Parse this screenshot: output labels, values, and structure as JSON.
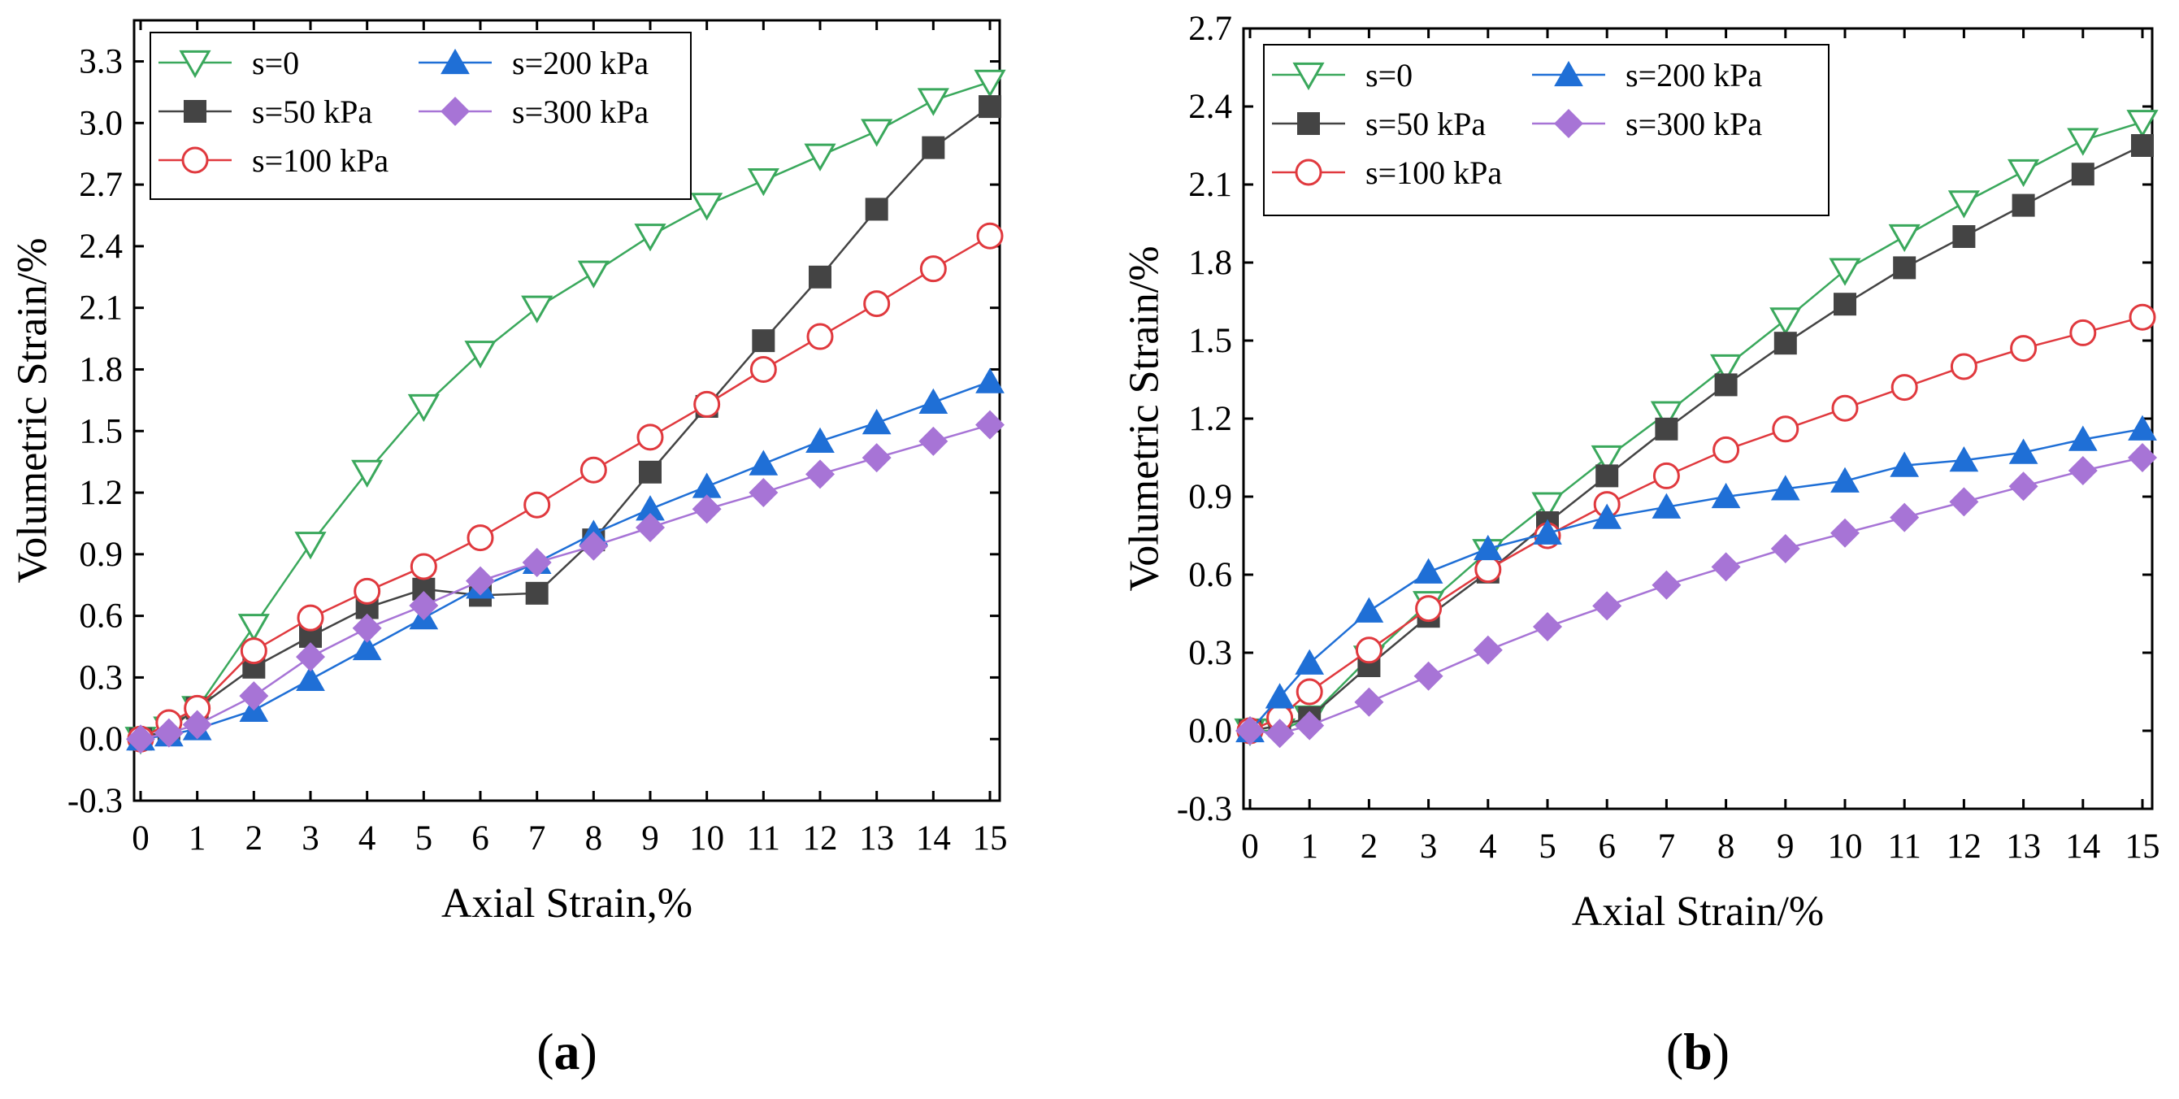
{
  "chart_data": [
    {
      "type": "line",
      "panel_label": "a",
      "xlabel": "Axial Strain,%",
      "ylabel": "Volumetric Strain/%",
      "xlim": [
        0,
        15
      ],
      "ylim": [
        -0.3,
        3.5
      ],
      "x_ticks": [
        "0",
        "1",
        "2",
        "3",
        "4",
        "5",
        "6",
        "7",
        "8",
        "9",
        "10",
        "11",
        "12",
        "13",
        "14",
        "15"
      ],
      "y_ticks": [
        "-0.3",
        "0.0",
        "0.3",
        "0.6",
        "0.9",
        "1.2",
        "1.5",
        "1.8",
        "2.1",
        "2.4",
        "2.7",
        "3.0",
        "3.3"
      ],
      "legend_position": "top-left",
      "series": [
        {
          "name": "s=0",
          "color": "#3aa85c",
          "marker": "triangle-down-open",
          "x": [
            0,
            0.5,
            1,
            2,
            3,
            4,
            5,
            6,
            7,
            8,
            9,
            10,
            11,
            12,
            13,
            14,
            15
          ],
          "y": [
            0,
            0.05,
            0.15,
            0.55,
            0.95,
            1.3,
            1.62,
            1.88,
            2.1,
            2.27,
            2.45,
            2.6,
            2.72,
            2.84,
            2.96,
            3.11,
            3.2
          ]
        },
        {
          "name": "s=50 kPa",
          "color": "#444444",
          "marker": "square",
          "x": [
            0,
            0.5,
            1,
            2,
            3,
            4,
            5,
            6,
            7,
            8,
            9,
            10,
            11,
            12,
            13,
            14,
            15
          ],
          "y": [
            0,
            0.05,
            0.15,
            0.35,
            0.5,
            0.64,
            0.73,
            0.7,
            0.71,
            0.97,
            1.3,
            1.62,
            1.94,
            2.25,
            2.58,
            2.88,
            3.08
          ]
        },
        {
          "name": "s=100 kPa",
          "color": "#e0393e",
          "marker": "circle-open",
          "x": [
            0,
            0.5,
            1,
            2,
            3,
            4,
            5,
            6,
            7,
            8,
            9,
            10,
            11,
            12,
            13,
            14,
            15
          ],
          "y": [
            0,
            0.08,
            0.15,
            0.43,
            0.59,
            0.72,
            0.84,
            0.98,
            1.14,
            1.31,
            1.47,
            1.63,
            1.8,
            1.96,
            2.12,
            2.29,
            2.45
          ]
        },
        {
          "name": "s=200 kPa",
          "color": "#1f6fd6",
          "marker": "triangle-up",
          "x": [
            0,
            0.5,
            1,
            2,
            3,
            4,
            5,
            6,
            7,
            8,
            9,
            10,
            11,
            12,
            13,
            14,
            15
          ],
          "y": [
            0,
            0.02,
            0.05,
            0.14,
            0.29,
            0.44,
            0.59,
            0.74,
            0.86,
            1.0,
            1.12,
            1.23,
            1.34,
            1.45,
            1.54,
            1.64,
            1.74
          ]
        },
        {
          "name": "s=300 kPa",
          "color": "#a774d6",
          "marker": "diamond",
          "x": [
            0,
            0.5,
            1,
            2,
            3,
            4,
            5,
            6,
            7,
            8,
            9,
            10,
            11,
            12,
            13,
            14,
            15
          ],
          "y": [
            0,
            0.03,
            0.07,
            0.21,
            0.4,
            0.54,
            0.65,
            0.77,
            0.86,
            0.94,
            1.03,
            1.12,
            1.2,
            1.29,
            1.37,
            1.45,
            1.53
          ]
        }
      ]
    },
    {
      "type": "line",
      "panel_label": "b",
      "xlabel": "Axial Strain/%",
      "ylabel": "Volumetric Strain/%",
      "xlim": [
        0,
        15
      ],
      "ylim": [
        -0.3,
        2.7
      ],
      "x_ticks": [
        "0",
        "1",
        "2",
        "3",
        "4",
        "5",
        "6",
        "7",
        "8",
        "9",
        "10",
        "11",
        "12",
        "13",
        "14",
        "15"
      ],
      "y_ticks": [
        "-0.3",
        "0.0",
        "0.3",
        "0.6",
        "0.9",
        "1.2",
        "1.5",
        "1.8",
        "2.1",
        "2.4",
        "2.7"
      ],
      "legend_position": "top-left",
      "series": [
        {
          "name": "s=0",
          "color": "#3aa85c",
          "marker": "triangle-down-open",
          "x": [
            0,
            0.5,
            1,
            2,
            3,
            4,
            5,
            6,
            7,
            8,
            9,
            10,
            11,
            12,
            13,
            14,
            15
          ],
          "y": [
            0,
            0.0,
            0.05,
            0.28,
            0.49,
            0.69,
            0.87,
            1.05,
            1.22,
            1.4,
            1.58,
            1.77,
            1.9,
            2.03,
            2.15,
            2.27,
            2.34
          ]
        },
        {
          "name": "s=50 kPa",
          "color": "#444444",
          "marker": "square",
          "x": [
            0,
            0.5,
            1,
            2,
            3,
            4,
            5,
            6,
            7,
            8,
            9,
            10,
            11,
            12,
            13,
            14,
            15
          ],
          "y": [
            0,
            0.02,
            0.05,
            0.25,
            0.44,
            0.61,
            0.8,
            0.98,
            1.16,
            1.33,
            1.49,
            1.64,
            1.78,
            1.9,
            2.02,
            2.14,
            2.25
          ]
        },
        {
          "name": "s=100 kPa",
          "color": "#e0393e",
          "marker": "circle-open",
          "x": [
            0,
            0.5,
            1,
            2,
            3,
            4,
            5,
            6,
            7,
            8,
            9,
            10,
            11,
            12,
            13,
            14,
            15
          ],
          "y": [
            0,
            0.05,
            0.15,
            0.31,
            0.47,
            0.62,
            0.75,
            0.87,
            0.98,
            1.08,
            1.16,
            1.24,
            1.32,
            1.4,
            1.47,
            1.53,
            1.59
          ]
        },
        {
          "name": "s=200 kPa",
          "color": "#1f6fd6",
          "marker": "triangle-up",
          "x": [
            0,
            0.5,
            1,
            2,
            3,
            4,
            5,
            6,
            7,
            8,
            9,
            10,
            11,
            12,
            13,
            14,
            15
          ],
          "y": [
            0,
            0.13,
            0.26,
            0.46,
            0.61,
            0.7,
            0.76,
            0.82,
            0.86,
            0.9,
            0.93,
            0.96,
            1.02,
            1.04,
            1.07,
            1.12,
            1.16
          ]
        },
        {
          "name": "s=300 kPa",
          "color": "#a774d6",
          "marker": "diamond",
          "x": [
            0,
            0.5,
            1,
            2,
            3,
            4,
            5,
            6,
            7,
            8,
            9,
            10,
            11,
            12,
            13,
            14,
            15
          ],
          "y": [
            0,
            -0.01,
            0.02,
            0.11,
            0.21,
            0.31,
            0.4,
            0.48,
            0.56,
            0.63,
            0.7,
            0.76,
            0.82,
            0.88,
            0.94,
            1.0,
            1.05
          ]
        }
      ]
    }
  ]
}
